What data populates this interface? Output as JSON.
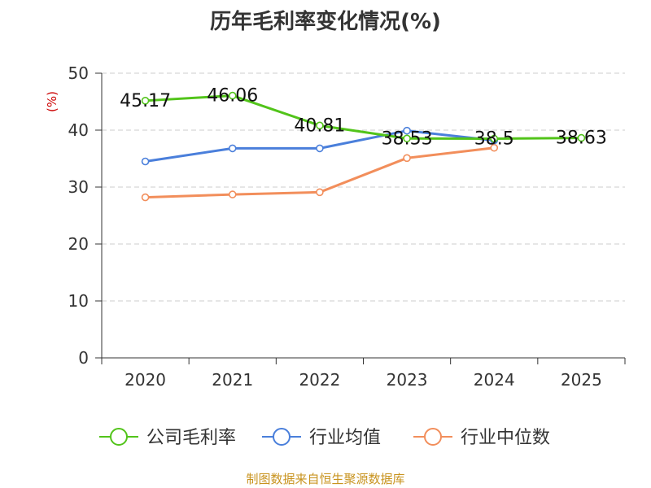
{
  "chart_data": {
    "type": "line",
    "title": "历年毛利率变化情况(%)",
    "ylabel": "(%)",
    "xlabel": "",
    "categories": [
      "2020",
      "2021",
      "2022",
      "2023",
      "2024",
      "2025"
    ],
    "ylim": [
      0,
      50
    ],
    "yticks": [
      0,
      10,
      20,
      30,
      40,
      50
    ],
    "grid": true,
    "legend_position": "bottom",
    "series": [
      {
        "name": "公司毛利率",
        "color": "#52c41a",
        "values": [
          45.17,
          46.06,
          40.81,
          38.53,
          38.5,
          38.63
        ],
        "labels": [
          "45.17",
          "46.06",
          "40.81",
          "38.53",
          "38.5",
          "38.63"
        ]
      },
      {
        "name": "行业均值",
        "color": "#4a7fdb",
        "values": [
          34.5,
          36.8,
          36.8,
          39.9,
          38.2,
          null
        ]
      },
      {
        "name": "行业中位数",
        "color": "#f28e5b",
        "values": [
          28.2,
          28.7,
          29.1,
          35.1,
          36.9,
          null
        ]
      }
    ]
  },
  "source": "制图数据来自恒生聚源数据库"
}
